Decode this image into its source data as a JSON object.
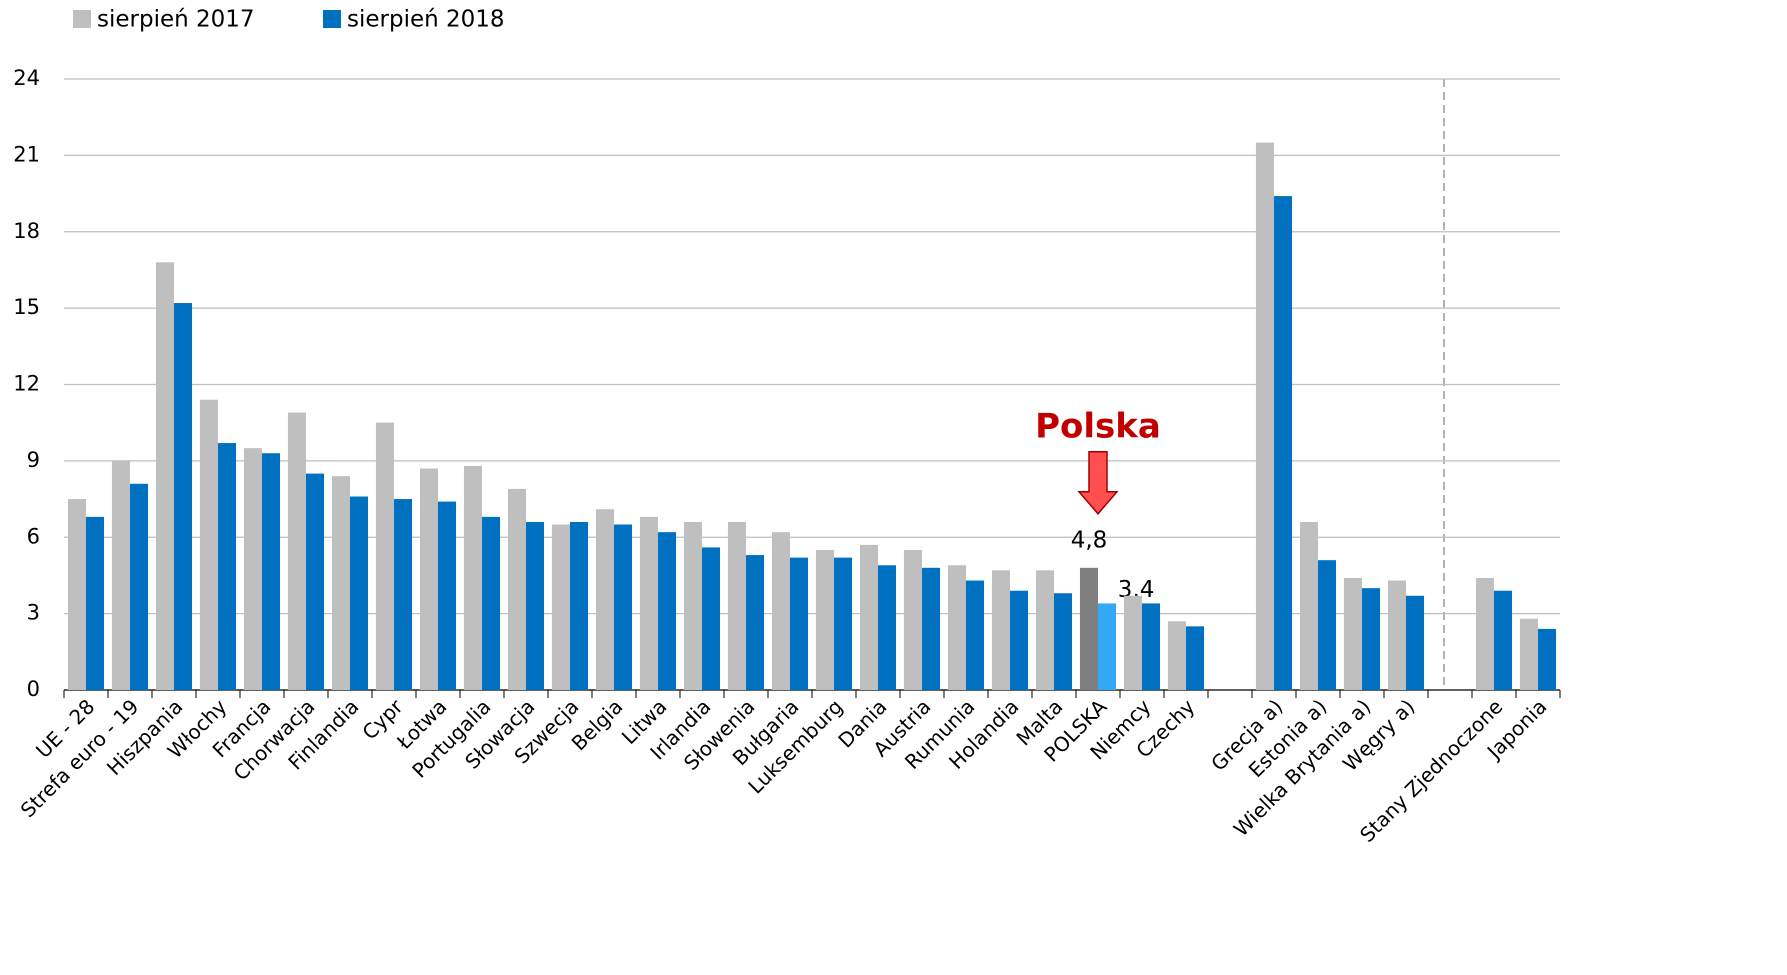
{
  "chart_data": {
    "type": "bar",
    "categories": [
      "UE - 28",
      "Strefa euro - 19",
      "Hiszpania",
      "Włochy",
      "Francja",
      "Chorwacja",
      "Finlandia",
      "Cypr",
      "Łotwa",
      "Portugalia",
      "Słowacja",
      "Szwecja",
      "Belgia",
      "Litwa",
      "Irlandia",
      "Słowenia",
      "Bułgaria",
      "Luksemburg",
      "Dania",
      "Austria",
      "Rumunia",
      "Holandia",
      "Malta",
      "POLSKA",
      "Niemcy",
      "Czechy",
      null,
      "Grecja a)",
      "Estonia a)",
      "Wielka Brytania a)",
      "Węgry a)",
      null,
      "Stany Zjednoczone",
      "Japonia"
    ],
    "series": [
      {
        "name": "sierpień 2017",
        "color": "#bfbfbf",
        "highlight_color": "#7f7f7f",
        "values": [
          7.5,
          9.0,
          16.8,
          11.4,
          9.5,
          10.9,
          8.4,
          10.5,
          8.7,
          8.8,
          7.9,
          6.5,
          7.1,
          6.8,
          6.6,
          6.6,
          6.2,
          5.5,
          5.7,
          5.5,
          4.9,
          4.7,
          4.7,
          4.8,
          3.7,
          2.7,
          null,
          21.5,
          6.6,
          4.4,
          4.3,
          null,
          4.4,
          2.8
        ],
        "value_labels": [
          null,
          null,
          null,
          null,
          null,
          null,
          null,
          null,
          null,
          null,
          null,
          null,
          null,
          null,
          null,
          null,
          null,
          null,
          null,
          null,
          null,
          null,
          null,
          "4,8",
          null,
          null,
          null,
          null,
          null,
          null,
          null,
          null,
          null,
          null
        ]
      },
      {
        "name": "sierpień 2018",
        "color": "#0070c0",
        "highlight_color": "#33a8f5",
        "values": [
          6.8,
          8.1,
          15.2,
          9.7,
          9.3,
          8.5,
          7.6,
          7.5,
          7.4,
          6.8,
          6.6,
          6.6,
          6.5,
          6.2,
          5.6,
          5.3,
          5.2,
          5.2,
          4.9,
          4.8,
          4.3,
          3.9,
          3.8,
          3.4,
          3.4,
          2.5,
          null,
          19.4,
          5.1,
          4.0,
          3.7,
          null,
          3.9,
          2.4
        ],
        "value_labels": [
          null,
          null,
          null,
          null,
          null,
          null,
          null,
          null,
          null,
          null,
          null,
          null,
          null,
          null,
          null,
          null,
          null,
          null,
          null,
          null,
          null,
          null,
          null,
          "3,4",
          null,
          null,
          null,
          null,
          null,
          null,
          null,
          null,
          null,
          null
        ]
      }
    ],
    "annotation": {
      "text": "Polska",
      "color": "#c00000"
    },
    "ylim": [
      0,
      24
    ],
    "yticks": [
      0,
      3,
      6,
      9,
      12,
      15,
      18,
      21,
      24
    ],
    "grid": true
  }
}
